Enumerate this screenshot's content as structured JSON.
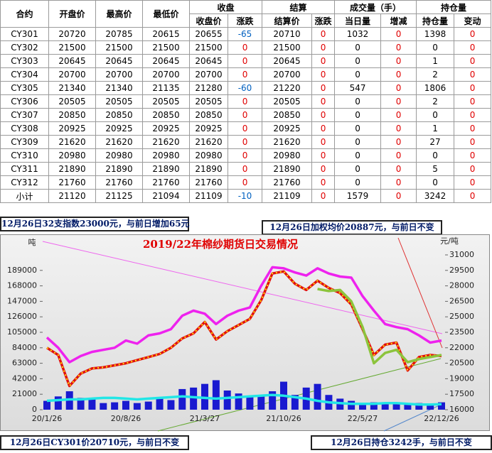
{
  "table": {
    "group_headers": [
      "收盘",
      "结算",
      "成交量（手）",
      "持仓量"
    ],
    "headers": [
      "合约",
      "开盘价",
      "最高价",
      "最低价",
      "收盘价",
      "涨跌",
      "结算价",
      "涨跌",
      "当日量",
      "增减",
      "持仓量",
      "变动"
    ],
    "rows": [
      [
        "CY301",
        20720,
        20785,
        20615,
        20655,
        -65,
        20710,
        0,
        1032,
        0,
        1398,
        0
      ],
      [
        "CY302",
        21500,
        21500,
        21500,
        21500,
        0,
        21500,
        0,
        0,
        0,
        0,
        0
      ],
      [
        "CY303",
        20645,
        20645,
        20645,
        20645,
        0,
        20645,
        0,
        0,
        0,
        1,
        0
      ],
      [
        "CY304",
        20700,
        20700,
        20700,
        20700,
        0,
        20700,
        0,
        0,
        0,
        2,
        0
      ],
      [
        "CY305",
        21340,
        21340,
        21135,
        21280,
        -60,
        21220,
        0,
        547,
        0,
        1806,
        0
      ],
      [
        "CY306",
        20505,
        20505,
        20505,
        20505,
        0,
        20505,
        0,
        0,
        0,
        2,
        0
      ],
      [
        "CY307",
        20850,
        20850,
        20850,
        20850,
        0,
        20850,
        0,
        0,
        0,
        0,
        0
      ],
      [
        "CY308",
        20925,
        20925,
        20925,
        20925,
        0,
        20925,
        0,
        0,
        0,
        1,
        0
      ],
      [
        "CY309",
        21620,
        21620,
        21620,
        21620,
        0,
        21620,
        0,
        0,
        0,
        27,
        0
      ],
      [
        "CY310",
        20980,
        20980,
        20980,
        20980,
        0,
        20980,
        0,
        0,
        0,
        0,
        0
      ],
      [
        "CY311",
        21890,
        21890,
        21890,
        21890,
        0,
        21890,
        0,
        0,
        0,
        5,
        0
      ],
      [
        "CY312",
        21760,
        21760,
        21760,
        21760,
        0,
        21760,
        0,
        0,
        0,
        0,
        0
      ],
      [
        "小计",
        21120,
        21125,
        21094,
        21109,
        -10,
        21109,
        0,
        1579,
        0,
        3242,
        0
      ]
    ]
  },
  "notes": [
    "12月26日32支指数23000元，与前日增加65元",
    "12月26日加权均价20887元，与前日不变",
    "12月26日CY301价20710元，与前日不变",
    "12月26日持仓3242手，与前日不变"
  ],
  "chart_data": {
    "type": "combo",
    "title": "2019/22年棉纱期货日交易情况",
    "ylabel": "吨",
    "y2label": "元/吨",
    "categories": [
      "20/1/26",
      null,
      null,
      null,
      null,
      null,
      null,
      "20/8/26",
      null,
      null,
      null,
      null,
      null,
      null,
      "21/3/27",
      null,
      null,
      null,
      null,
      null,
      null,
      "21/10/26",
      null,
      null,
      null,
      null,
      null,
      null,
      "22/5/27",
      null,
      null,
      null,
      null,
      null,
      null,
      "22/12/26"
    ],
    "ylim": [
      0,
      210000
    ],
    "yticks": [
      0,
      21000,
      42000,
      63000,
      84000,
      105000,
      126000,
      147000,
      168000,
      189000
    ],
    "y2lim": [
      16000,
      31000
    ],
    "y2ticks": [
      16000,
      17500,
      19000,
      20500,
      22000,
      23500,
      25000,
      26500,
      28000,
      29500,
      31000
    ],
    "series": [
      {
        "type": "bar",
        "color": "#1a1ad0",
        "axis": "y",
        "values": [
          12000,
          18000,
          25000,
          16000,
          14000,
          9000,
          10000,
          12000,
          9000,
          11000,
          15000,
          13000,
          28000,
          30000,
          35000,
          40000,
          26000,
          22000,
          18000,
          20000,
          25000,
          38000,
          20000,
          30000,
          35000,
          20000,
          15000,
          12000,
          8000,
          10000,
          9000,
          8000,
          7000,
          9000,
          8000,
          10000
        ]
      },
      {
        "type": "line",
        "color": "#22e6e6",
        "axis": "y",
        "values": [
          12000,
          13000,
          14000,
          14000,
          15000,
          16000,
          16000,
          15000,
          14000,
          15000,
          16000,
          17000,
          18000,
          17000,
          16000,
          15000,
          16000,
          17000,
          18000,
          19000,
          20000,
          19000,
          17000,
          15000,
          12000,
          10000,
          9000,
          8000,
          8000,
          8000,
          9000,
          9000,
          8000,
          7000,
          7000,
          7500
        ]
      },
      {
        "type": "line",
        "color": "#ee22ee",
        "axis": "y2",
        "values": [
          23000,
          22000,
          20600,
          21200,
          21600,
          21800,
          22000,
          22700,
          22400,
          23200,
          23400,
          23800,
          25100,
          25600,
          25300,
          24300,
          25100,
          25600,
          25900,
          28000,
          29800,
          29700,
          29300,
          29000,
          29700,
          29200,
          28900,
          28800,
          27000,
          25600,
          24300,
          24000,
          23800,
          23200,
          22500,
          22700
        ]
      },
      {
        "type": "line",
        "color": "#e01010",
        "axis": "y2",
        "values": [
          22000,
          21300,
          18300,
          19500,
          20000,
          20100,
          20300,
          20500,
          20800,
          21100,
          21400,
          22000,
          22900,
          23400,
          24500,
          22800,
          23600,
          24200,
          24800,
          26600,
          29200,
          29400,
          28200,
          27600,
          28500,
          27800,
          27300,
          26200,
          23800,
          21300,
          22300,
          22500,
          19800,
          21100,
          21300,
          21200
        ]
      },
      {
        "type": "line",
        "color": "#8cc43c",
        "axis": "y2",
        "values": [
          null,
          null,
          null,
          null,
          null,
          null,
          null,
          null,
          null,
          null,
          null,
          null,
          null,
          null,
          null,
          null,
          null,
          null,
          null,
          null,
          null,
          null,
          null,
          null,
          27700,
          27500,
          27600,
          26500,
          24000,
          20500,
          21500,
          21800,
          20600,
          20900,
          21100,
          21300
        ]
      }
    ]
  }
}
